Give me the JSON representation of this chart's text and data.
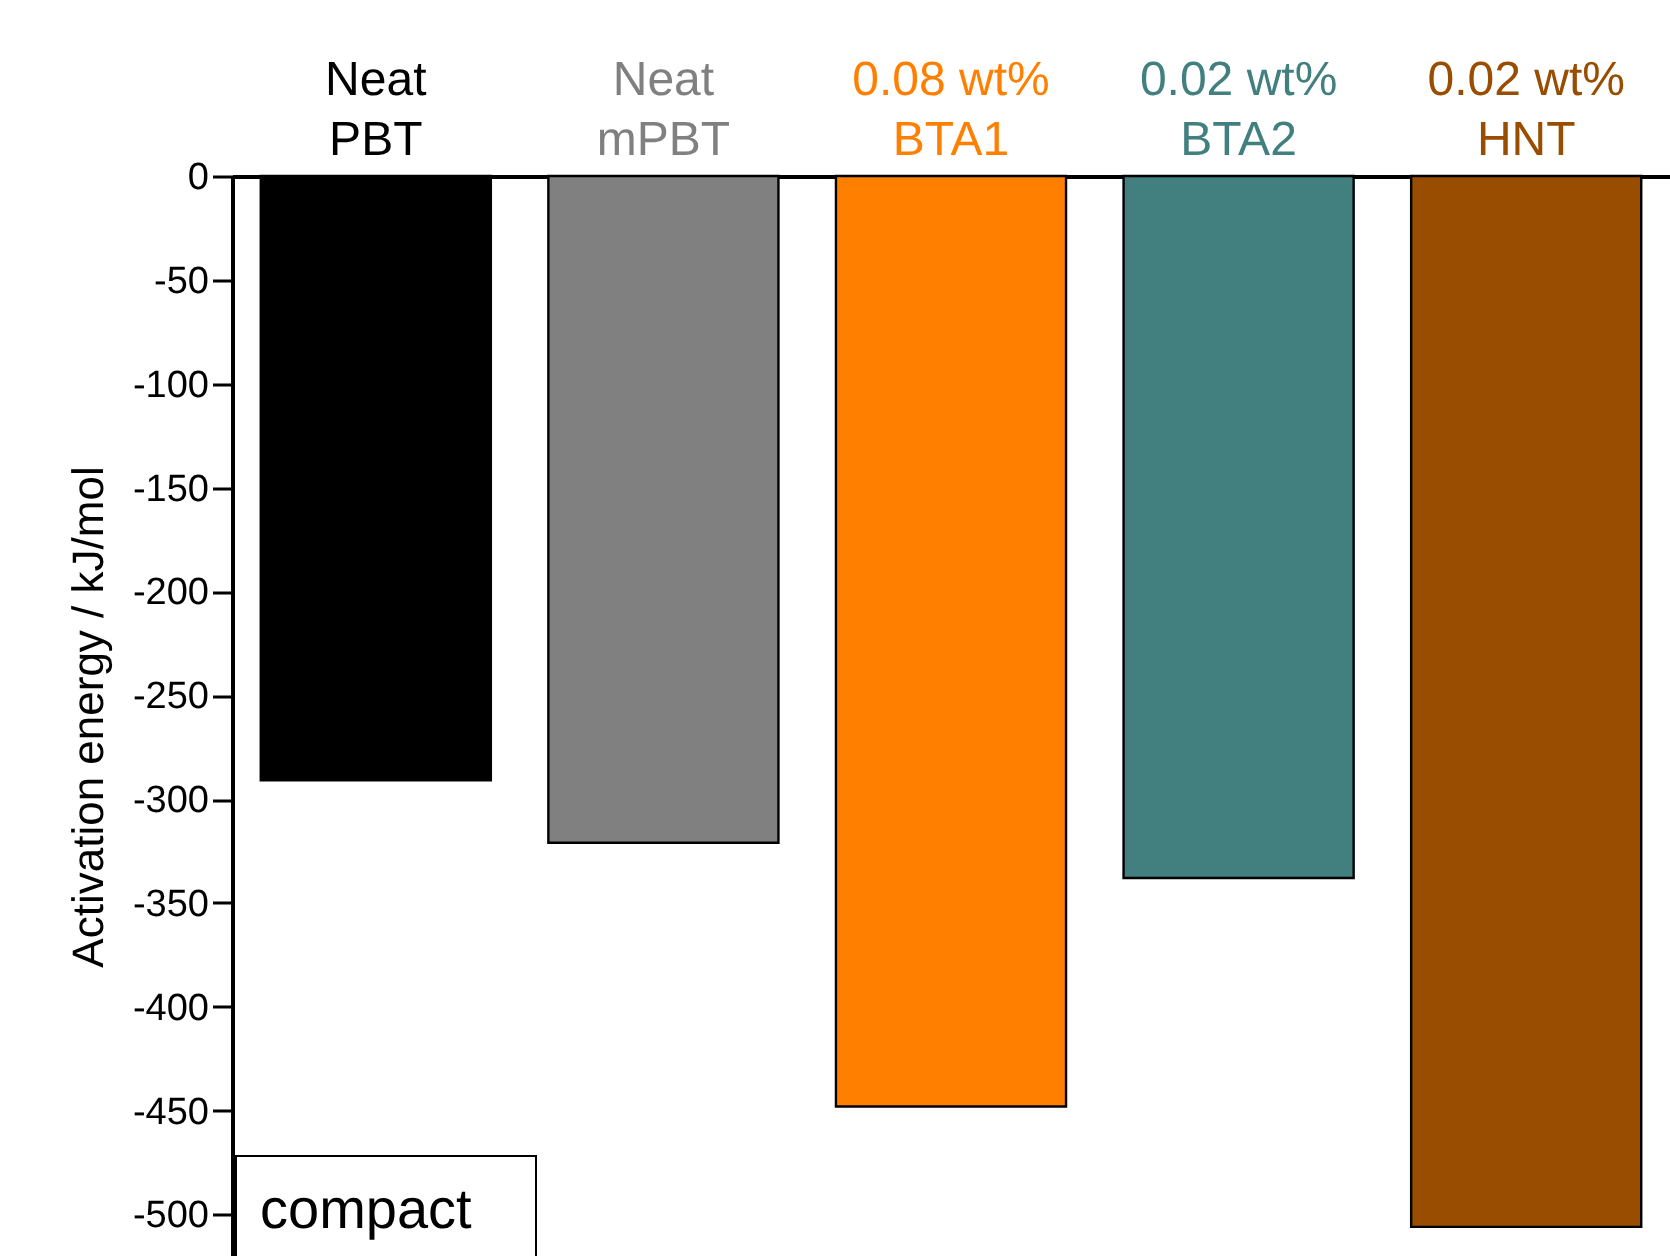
{
  "chart_data": {
    "type": "bar",
    "categories": [
      "Neat\nPBT",
      "Neat\nmPBT",
      "0.08 wt%\nBTA1",
      "0.02 wt%\nBTA2",
      "0.02 wt%\nHNT"
    ],
    "values": [
      -291,
      -321,
      -448,
      -338,
      -506
    ],
    "colors": [
      "#000000",
      "#808080",
      "#ff8000",
      "#428080",
      "#994d00"
    ],
    "ylabel": "Activation energy / kJ/mol",
    "ylim": [
      -520,
      0
    ],
    "yticks": [
      0,
      -50,
      -100,
      -150,
      -200,
      -250,
      -300,
      -350,
      -400,
      -450,
      -500
    ],
    "annotations": [
      "compact"
    ],
    "grid": false
  }
}
